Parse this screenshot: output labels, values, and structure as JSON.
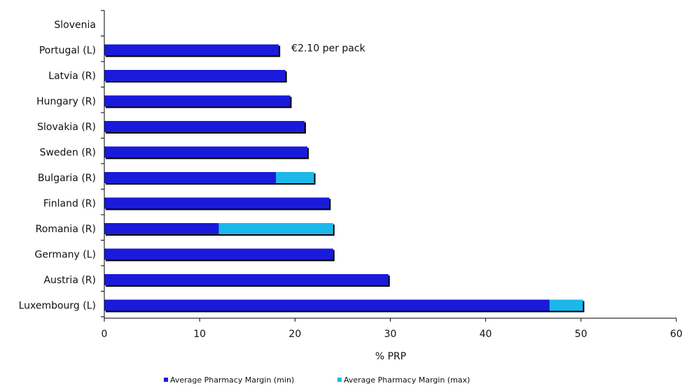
{
  "chart_data": {
    "type": "bar",
    "orientation": "horizontal",
    "stacked": true,
    "title": "",
    "xlabel": "% PRP",
    "ylabel": "",
    "xlim": [
      0,
      60
    ],
    "xticks": [
      0,
      10,
      20,
      30,
      40,
      50,
      60
    ],
    "grid": false,
    "legend_position": "bottom",
    "categories": [
      "Slovenia",
      "Portugal (L)",
      "Latvia (R)",
      "Hungary (R)",
      "Slovakia (R)",
      "Sweden (R)",
      "Bulgaria (R)",
      "Finland (R)",
      "Romania (R)",
      "Germany (L)",
      "Austria (R)",
      "Luxembourg (L)"
    ],
    "series": [
      {
        "name": "Average Pharmacy Margin (min)",
        "color": "#1a1adb",
        "values": [
          0,
          18.3,
          19.0,
          19.5,
          21.0,
          21.3,
          18.0,
          23.6,
          12.0,
          24.0,
          29.8,
          46.7
        ]
      },
      {
        "name": "Average Pharmacy Margin (max)",
        "color": "#1cb8ea",
        "values": [
          0,
          0,
          0,
          0,
          0,
          0,
          4.0,
          0,
          12.0,
          0,
          0,
          3.5
        ]
      }
    ],
    "annotations": [
      {
        "category": "Portugal (L)",
        "text": "€2.10 per pack"
      }
    ]
  }
}
